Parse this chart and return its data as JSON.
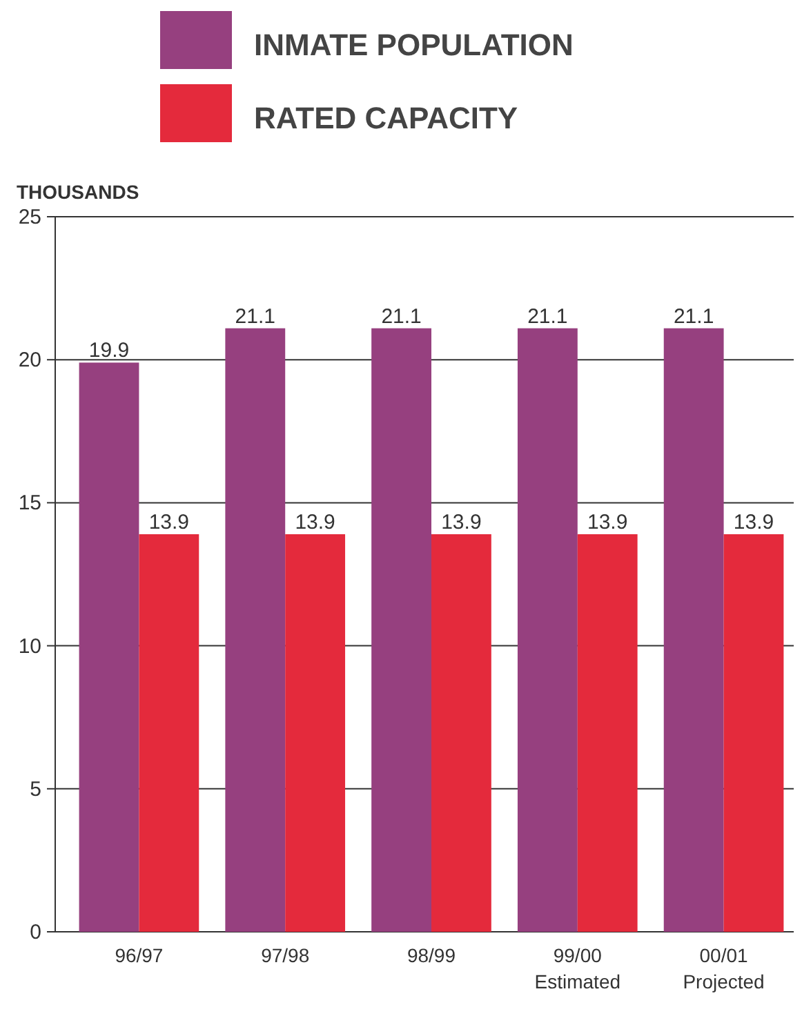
{
  "chart_data": {
    "type": "bar",
    "ylabel": "THOUSANDS",
    "categories": [
      "96/97",
      "97/98",
      "98/99",
      "99/00\nEstimated",
      "00/01\nProjected"
    ],
    "series": [
      {
        "name": "INMATE POPULATION",
        "color": "#96407f",
        "values": [
          19.9,
          21.1,
          21.1,
          21.1,
          21.1
        ]
      },
      {
        "name": "RATED CAPACITY",
        "color": "#e42a3c",
        "values": [
          13.9,
          13.9,
          13.9,
          13.9,
          13.9
        ]
      }
    ],
    "ylim": [
      0,
      25
    ],
    "yticks": [
      0,
      5,
      10,
      15,
      20,
      25
    ],
    "grid": "y",
    "legend": "top",
    "data_labels": true
  }
}
